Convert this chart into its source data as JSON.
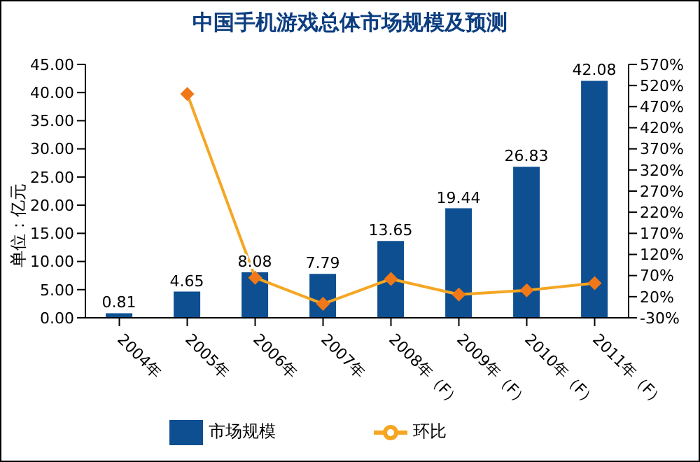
{
  "chart_data": {
    "type": "bar",
    "title": "中国手机游戏总体市场规模及预测",
    "ylabel": "单位：亿元",
    "categories": [
      "2004年",
      "2005年",
      "2006年",
      "2007年",
      "2008年（F）",
      "2009年（F）",
      "2010年（F）",
      "2011年（F）"
    ],
    "series": [
      {
        "name": "市场规模",
        "color": "#0d4f91",
        "values": [
          0.81,
          4.65,
          8.08,
          7.79,
          13.65,
          19.44,
          26.83,
          42.08
        ],
        "value_labels": [
          "0.81",
          "4.65",
          "8.08",
          "7.79",
          "13.65",
          "19.44",
          "26.83",
          "42.08"
        ]
      },
      {
        "name": "环比",
        "type": "line",
        "axis": "y2",
        "color": "#f5a623",
        "marker": "diamond",
        "values": [
          null,
          500,
          65,
          3,
          62,
          25,
          35,
          52
        ]
      }
    ],
    "ylim": [
      0,
      45
    ],
    "yticks": [
      {
        "value": 0,
        "label": "0.00"
      },
      {
        "value": 5,
        "label": "5.00"
      },
      {
        "value": 10,
        "label": "10.00"
      },
      {
        "value": 15,
        "label": "15.00"
      },
      {
        "value": 20,
        "label": "20.00"
      },
      {
        "value": 25,
        "label": "25.00"
      },
      {
        "value": 30,
        "label": "30.00"
      },
      {
        "value": 35,
        "label": "35.00"
      },
      {
        "value": 40,
        "label": "40.00"
      },
      {
        "value": 45,
        "label": "45.00"
      }
    ],
    "y2lim": [
      -30,
      570
    ],
    "y2ticks": [
      {
        "value": -30,
        "label": "-30%"
      },
      {
        "value": 20,
        "label": "20%"
      },
      {
        "value": 70,
        "label": "70%"
      },
      {
        "value": 120,
        "label": "120%"
      },
      {
        "value": 170,
        "label": "170%"
      },
      {
        "value": 220,
        "label": "220%"
      },
      {
        "value": 270,
        "label": "270%"
      },
      {
        "value": 320,
        "label": "320%"
      },
      {
        "value": 370,
        "label": "370%"
      },
      {
        "value": 420,
        "label": "420%"
      },
      {
        "value": 470,
        "label": "470%"
      },
      {
        "value": 520,
        "label": "520%"
      },
      {
        "value": 570,
        "label": "570%"
      }
    ],
    "grid": false,
    "legend": "bottom"
  }
}
